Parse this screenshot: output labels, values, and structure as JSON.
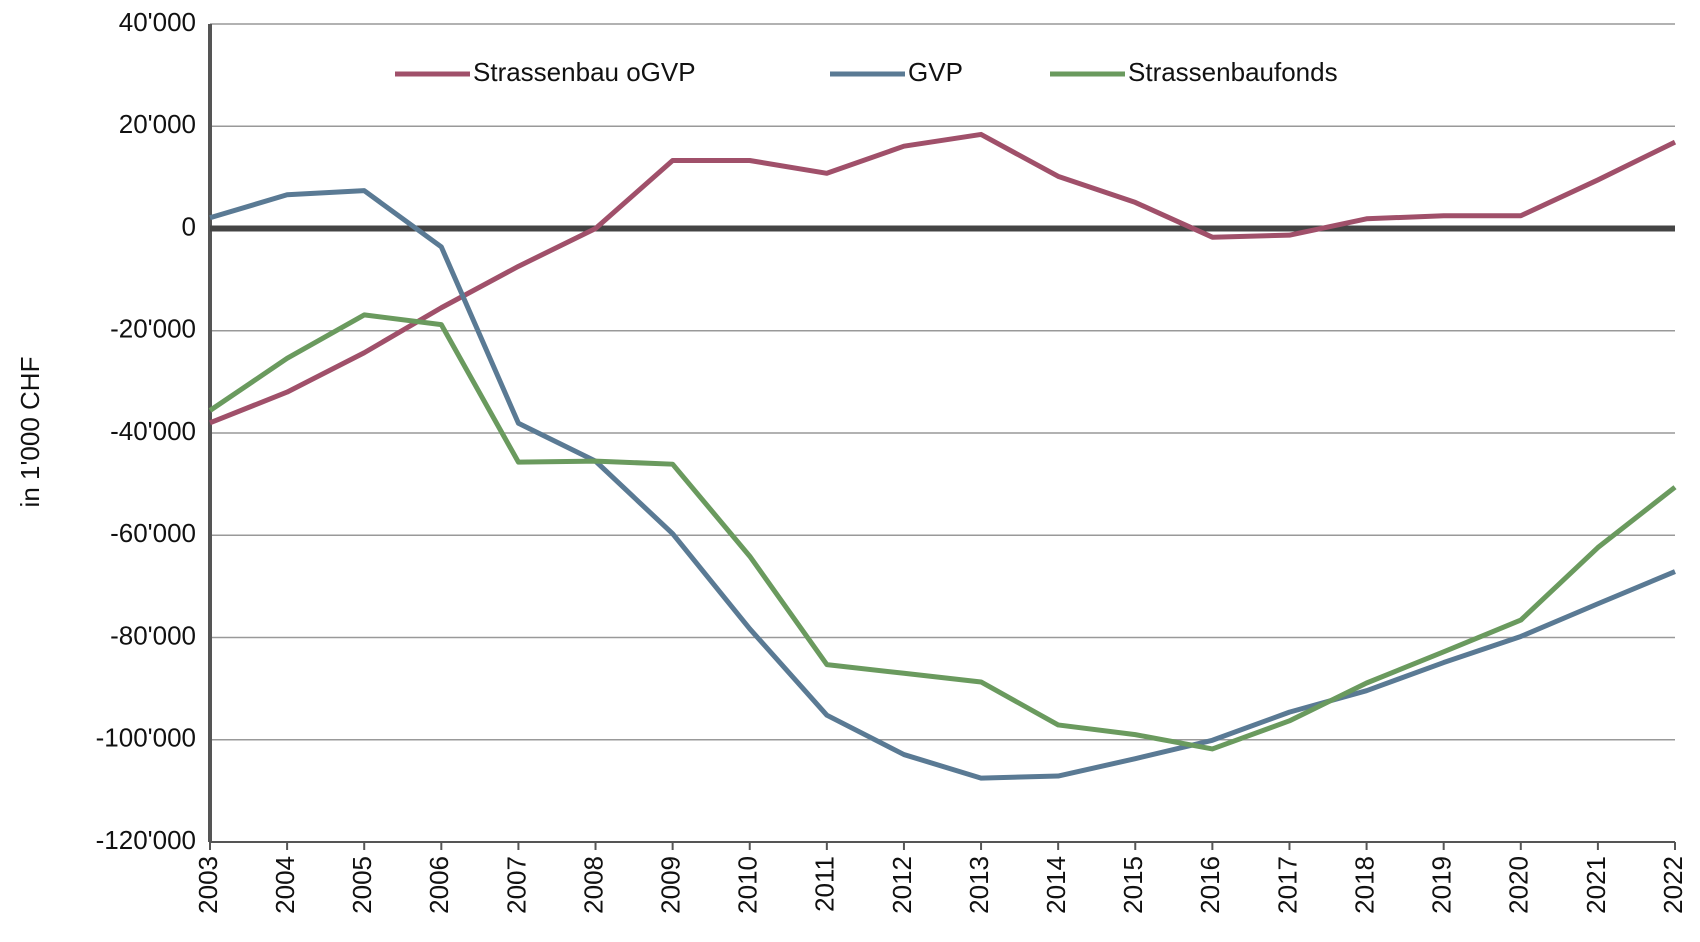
{
  "chart_data": {
    "type": "line",
    "y_label": "in 1'000 CHF",
    "categories": [
      "2003",
      "2004",
      "2005",
      "2006",
      "2007",
      "2008",
      "2009",
      "2010",
      "2011",
      "2012",
      "2013",
      "2014",
      "2015",
      "2016",
      "2017",
      "2018",
      "2019",
      "2020",
      "2021",
      "2022"
    ],
    "series": [
      {
        "name": "Strassenbau oGVP",
        "color": "#a0506a",
        "values": [
          -38000,
          -32000,
          -24300,
          -15500,
          -7400,
          0,
          13300,
          13300,
          10800,
          16100,
          18400,
          10200,
          5100,
          -1700,
          -1300,
          1900,
          2500,
          2500,
          9500,
          16900
        ]
      },
      {
        "name": "GVP",
        "color": "#5a7a94",
        "values": [
          2100,
          6600,
          7400,
          -3600,
          -38100,
          -45500,
          -59700,
          -78300,
          -95200,
          -102900,
          -107500,
          -107100,
          -103700,
          -100100,
          -94600,
          -90400,
          -84900,
          -79800,
          -73400,
          -67100
        ]
      },
      {
        "name": "Strassenbaufonds",
        "color": "#6a9a5e",
        "values": [
          -35600,
          -25400,
          -16900,
          -18800,
          -45700,
          -45500,
          -46100,
          -64100,
          -85300,
          -87000,
          -88700,
          -97100,
          -99000,
          -101800,
          -96300,
          -88900,
          -82800,
          -76600,
          -62400,
          -50600
        ]
      }
    ],
    "ylim": [
      -120000,
      40000
    ],
    "yticks": [
      {
        "value": -120000,
        "label": "-120'000"
      },
      {
        "value": -100000,
        "label": "-100'000"
      },
      {
        "value": -80000,
        "label": "-80'000"
      },
      {
        "value": -60000,
        "label": "-60'000"
      },
      {
        "value": -40000,
        "label": "-40'000"
      },
      {
        "value": -20000,
        "label": "-20'000"
      },
      0,
      {
        "value": 20000,
        "label": "20'000"
      },
      {
        "value": 40000,
        "label": "40'000"
      }
    ],
    "grid": true,
    "legend": "top"
  }
}
